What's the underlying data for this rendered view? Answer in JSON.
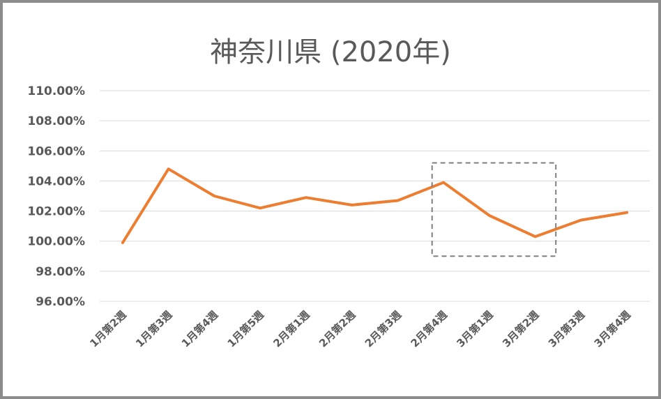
{
  "chart_data": {
    "type": "line",
    "title": "神奈川県 (2020年)",
    "xlabel": "",
    "ylabel": "",
    "ylim": [
      96,
      110
    ],
    "ytick_step": 2,
    "ytick_labels": [
      "96.00%",
      "98.00%",
      "100.00%",
      "102.00%",
      "104.00%",
      "106.00%",
      "108.00%",
      "110.00%"
    ],
    "categories": [
      "1月第2週",
      "1月第3週",
      "1月第4週",
      "1月第5週",
      "2月第1週",
      "2月第2週",
      "2月第3週",
      "2月第4週",
      "3月第1週",
      "3月第2週",
      "3月第3週",
      "3月第4週"
    ],
    "series": [
      {
        "color": "#ed7d31",
        "values": [
          99.9,
          104.8,
          103.0,
          102.2,
          102.9,
          102.4,
          102.7,
          103.9,
          101.7,
          100.3,
          101.4,
          101.9
        ]
      }
    ],
    "grid": true,
    "legend": "none",
    "highlight": {
      "style": "dashed-box",
      "from_category": "2月第4週",
      "to_category": "3月第2週",
      "y_range": [
        99,
        105.2
      ]
    }
  }
}
